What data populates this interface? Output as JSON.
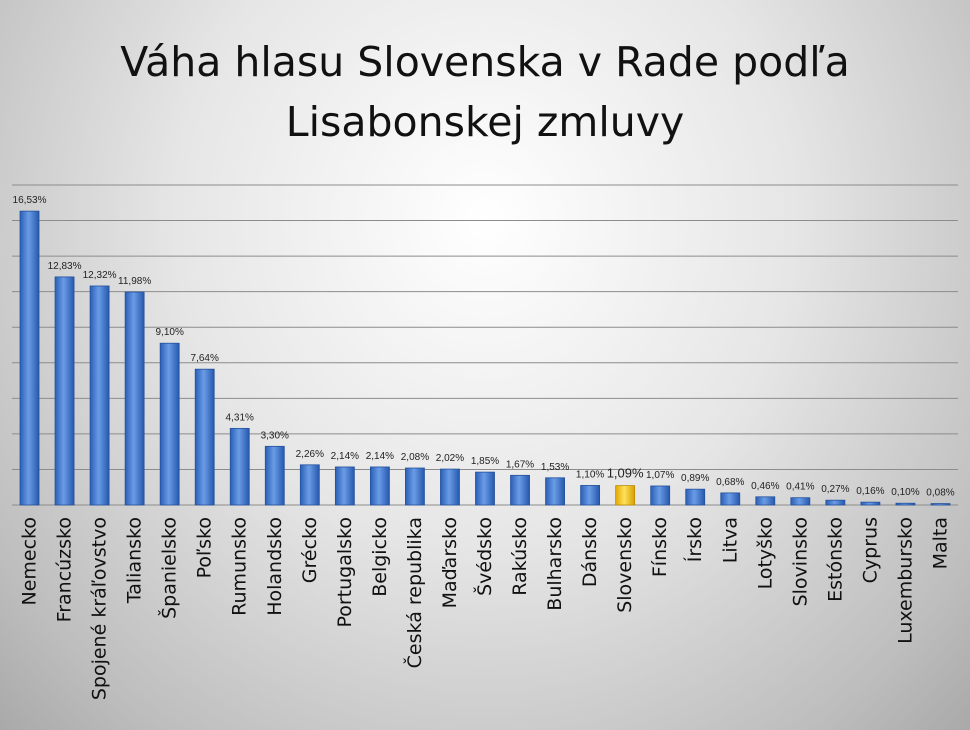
{
  "chart_data": {
    "type": "bar",
    "title_lines": [
      "Váha hlasu Slovenska v Rade podľa",
      "Lisabonskej zmluvy"
    ],
    "categories": [
      "Nemecko",
      "Francúzsko",
      "Spojené kráľovstvo",
      "Taliansko",
      "Španielsko",
      "Poľsko",
      "Rumunsko",
      "Holandsko",
      "Grécko",
      "Portugalsko",
      "Belgicko",
      "Česká republika",
      "Maďarsko",
      "Švédsko",
      "Rakúsko",
      "Bulharsko",
      "Dánsko",
      "Slovensko",
      "Fínsko",
      "Írsko",
      "Litva",
      "Lotyško",
      "Slovinsko",
      "Estónsko",
      "Cyprus",
      "Luxembursko",
      "Malta"
    ],
    "values": [
      16.53,
      12.83,
      12.32,
      11.98,
      9.1,
      7.64,
      4.31,
      3.3,
      2.26,
      2.14,
      2.14,
      2.08,
      2.02,
      1.85,
      1.67,
      1.53,
      1.1,
      1.09,
      1.07,
      0.89,
      0.68,
      0.46,
      0.41,
      0.27,
      0.16,
      0.1,
      0.08
    ],
    "value_labels": [
      "16,53%",
      "12,83%",
      "12,32%",
      "11,98%",
      "9,10%",
      "7,64%",
      "4,31%",
      "3,30%",
      "2,26%",
      "2,14%",
      "2,14%",
      "2,08%",
      "2,02%",
      "1,85%",
      "1,67%",
      "1,53%",
      "1,10%",
      "1,09%",
      "1,07%",
      "0,89%",
      "0,68%",
      "0,46%",
      "0,41%",
      "0,27%",
      "0,16%",
      "0,10%",
      "0,08%"
    ],
    "highlight": "Slovensko",
    "ylim": [
      0,
      18
    ],
    "grid": true,
    "colors": {
      "bar": "#3f78cf",
      "highlight": "#f2c200",
      "grid": "#8c8c8c"
    }
  }
}
